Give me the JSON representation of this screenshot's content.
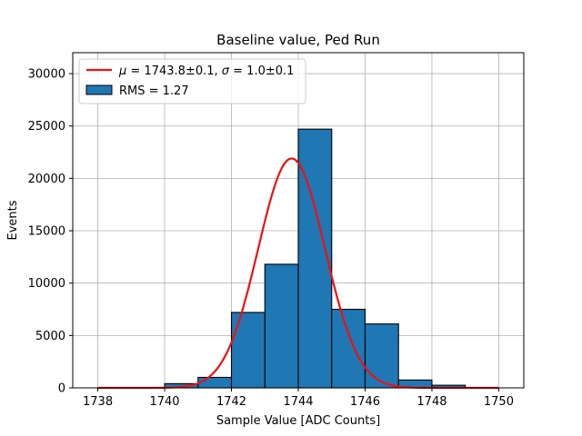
{
  "chart_data": {
    "type": "bar",
    "title": "Baseline value, Ped Run",
    "xlabel": "Sample Value [ADC Counts]",
    "ylabel": "Events",
    "xlim": [
      1737.25,
      1750.75
    ],
    "ylim": [
      0,
      32000
    ],
    "xticks": [
      1738,
      1740,
      1742,
      1744,
      1746,
      1748,
      1750
    ],
    "yticks": [
      0,
      5000,
      10000,
      15000,
      20000,
      25000,
      30000
    ],
    "grid": true,
    "legend_position": "top-left",
    "bins": {
      "edges": [
        1738.0,
        1739.0,
        1740.0,
        1741.0,
        1742.0,
        1743.0,
        1744.0,
        1745.0,
        1746.0,
        1747.0,
        1748.0,
        1749.0,
        1750.0
      ],
      "counts": [
        0,
        30,
        400,
        1000,
        7200,
        11800,
        24700,
        7500,
        6100,
        750,
        250,
        0
      ],
      "color": "#1f77b4",
      "label": "RMS = 1.27"
    },
    "fit": {
      "mu": 1743.8,
      "sigma": 1.0,
      "amplitude": 21900,
      "x_range": [
        1738,
        1750
      ],
      "color": "#ee1111",
      "label_parts": {
        "mu_symbol": "μ",
        "mu_value": " = 1743.8±0.1, ",
        "sigma_symbol": "σ",
        "sigma_value": " = 1.0±0.1"
      }
    }
  }
}
